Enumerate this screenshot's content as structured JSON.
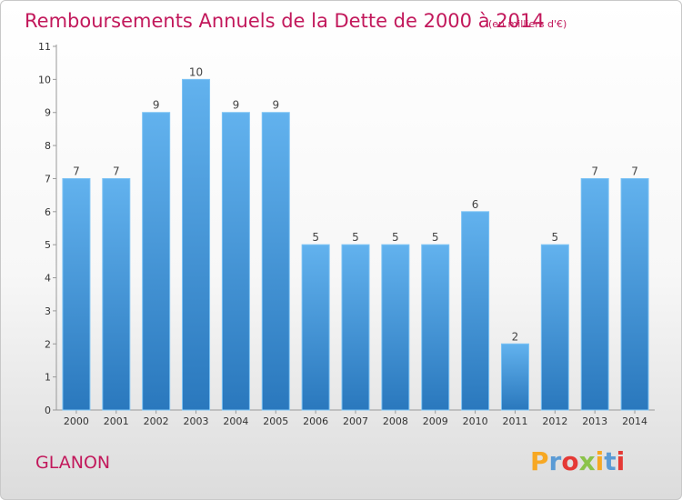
{
  "chart_data": {
    "type": "bar",
    "title": "Remboursements Annuels de la Dette de 2000 à 2014",
    "subtitle": "(en milliers d'€)",
    "categories": [
      "2000",
      "2001",
      "2002",
      "2003",
      "2004",
      "2005",
      "2006",
      "2007",
      "2008",
      "2009",
      "2010",
      "2011",
      "2012",
      "2013",
      "2014"
    ],
    "values": [
      7,
      7,
      9,
      10,
      9,
      9,
      5,
      5,
      5,
      5,
      6,
      2,
      5,
      7,
      7
    ],
    "y_ticks": [
      "0",
      "1",
      "2",
      "3",
      "4",
      "5",
      "6",
      "7",
      "8",
      "9",
      "10",
      "11"
    ],
    "ylim": [
      0,
      11
    ],
    "xlabel": "",
    "ylabel": "",
    "bar_color": "#3d8fd6",
    "grid": false
  },
  "footer": {
    "commune": "GLANON",
    "logo_letters": [
      "P",
      "r",
      "o",
      "x",
      "i",
      "t",
      "i"
    ],
    "logo_colors": [
      "#f7a823",
      "#5b9bd5",
      "#e53935",
      "#8bc34a",
      "#f7a823",
      "#5b9bd5",
      "#e53935"
    ]
  }
}
